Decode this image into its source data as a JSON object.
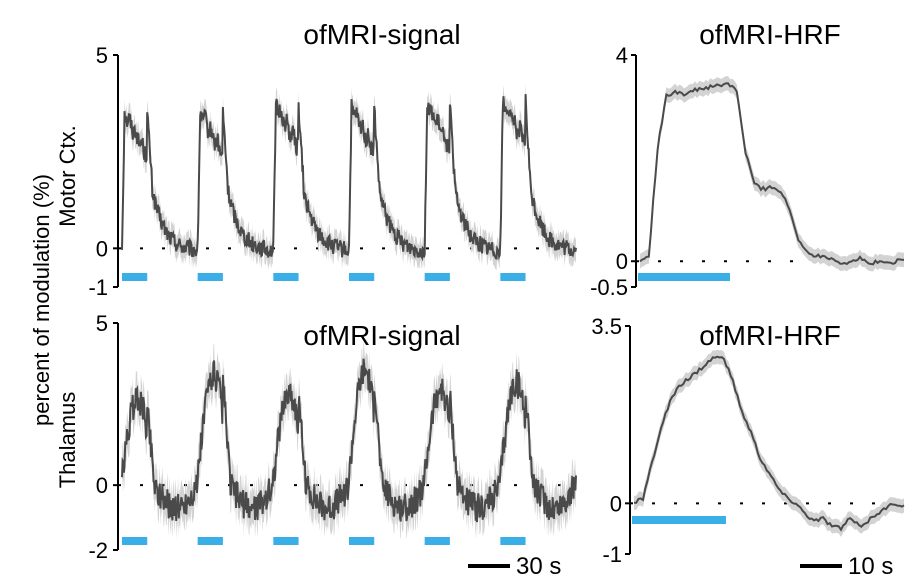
{
  "figure": {
    "ylabel_shared": "percent of modulation (%)",
    "row_labels": [
      "Motor Ctx.",
      "Thalamus"
    ],
    "line_color": "#4a4a4a",
    "band_color": "#d3d3d3",
    "stim_color": "#3aaee6"
  },
  "chart_data": [
    {
      "type": "line",
      "title": "ofMRI-signal",
      "row": "Motor Ctx.",
      "ylim": [
        -1,
        5
      ],
      "yticks": [
        "5",
        "0",
        "-1"
      ],
      "baseline": 0,
      "n_blocks": 6,
      "block_period_s": 60,
      "stim_on_s": 20,
      "plateau": [
        3.5,
        3.5,
        3.7,
        3.6,
        3.7,
        3.8
      ],
      "scalebar": "30 s"
    },
    {
      "type": "line",
      "title": "ofMRI-HRF",
      "row": "Motor Ctx.",
      "ylim": [
        -0.5,
        4
      ],
      "yticks": [
        "4",
        "0",
        "-0.5"
      ],
      "baseline": 0,
      "x": [
        0,
        2,
        4,
        6,
        8,
        10,
        14,
        18,
        20,
        22,
        24,
        26,
        28,
        30,
        32,
        34,
        36,
        38,
        40,
        42,
        44,
        46,
        48,
        50,
        52,
        54,
        56,
        58,
        60
      ],
      "y": [
        0,
        0.1,
        2.2,
        3.2,
        3.3,
        3.25,
        3.35,
        3.4,
        3.45,
        3.3,
        2.1,
        1.5,
        1.4,
        1.45,
        1.35,
        1.0,
        0.4,
        0.2,
        0.1,
        0.1,
        0.05,
        -0.05,
        0.0,
        0.05,
        -0.05,
        0.0,
        -0.05,
        0.0,
        0.05
      ],
      "stim_on_s": 20,
      "scalebar": "10 s"
    },
    {
      "type": "line",
      "title": "ofMRI-signal",
      "row": "Thalamus",
      "ylim": [
        -2,
        5
      ],
      "yticks": [
        "5",
        "0",
        "-2"
      ],
      "baseline": 0,
      "n_blocks": 6,
      "block_period_s": 60,
      "stim_on_s": 20,
      "plateau": [
        2.4,
        3.2,
        2.6,
        3.3,
        2.7,
        2.9
      ],
      "scalebar": "30 s"
    },
    {
      "type": "line",
      "title": "ofMRI-HRF",
      "row": "Thalamus",
      "ylim": [
        -1,
        3.5
      ],
      "yticks": [
        "3.5",
        "0",
        "-1"
      ],
      "baseline": 0,
      "x": [
        0,
        2,
        4,
        6,
        8,
        10,
        12,
        14,
        16,
        18,
        20,
        22,
        24,
        26,
        28,
        30,
        32,
        34,
        36,
        38,
        40,
        42,
        44,
        46,
        48,
        50,
        52,
        54,
        56,
        58,
        60
      ],
      "y": [
        0,
        0.1,
        0.8,
        1.5,
        2.0,
        2.3,
        2.45,
        2.6,
        2.75,
        2.9,
        2.85,
        2.4,
        1.8,
        1.4,
        0.9,
        0.6,
        0.3,
        0.1,
        0.0,
        -0.2,
        -0.35,
        -0.3,
        -0.45,
        -0.5,
        -0.3,
        -0.45,
        -0.35,
        -0.2,
        -0.1,
        0.0,
        -0.05
      ],
      "stim_on_s": 20,
      "scalebar": "10 s"
    }
  ]
}
